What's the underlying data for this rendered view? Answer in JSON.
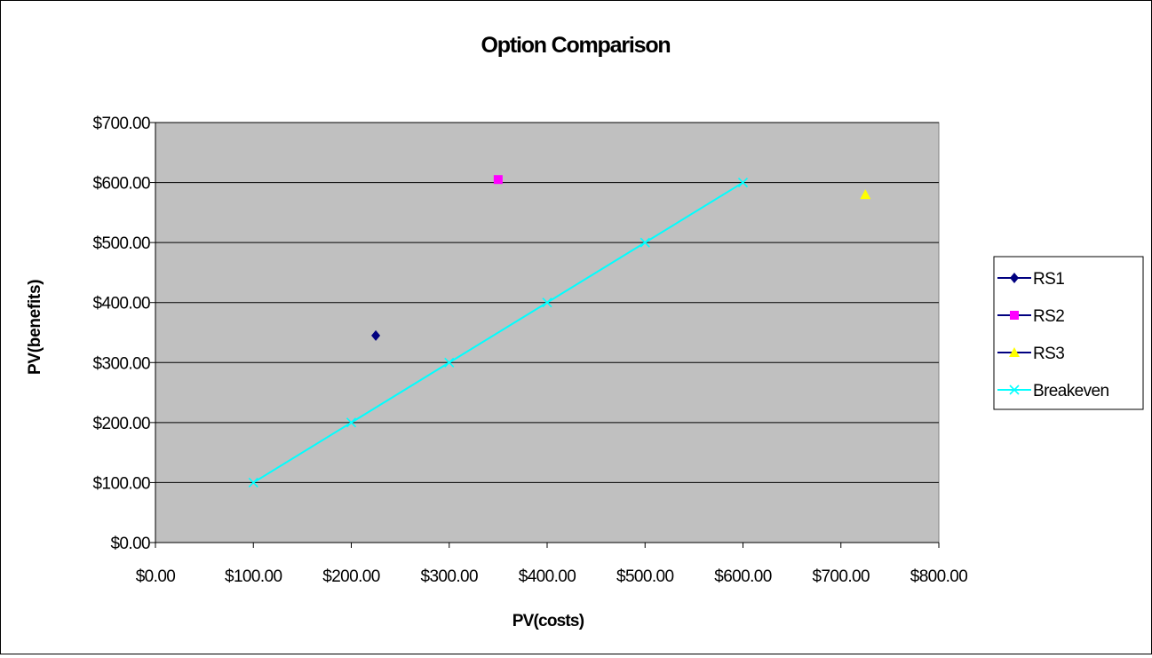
{
  "chart_data": {
    "type": "scatter",
    "title": "Option Comparison",
    "xlabel": "PV(costs)",
    "ylabel": "PV(benefits)",
    "xlim": [
      0,
      800
    ],
    "ylim": [
      0,
      700
    ],
    "x_ticks": [
      0,
      100,
      200,
      300,
      400,
      500,
      600,
      700,
      800
    ],
    "y_ticks": [
      0,
      100,
      200,
      300,
      400,
      500,
      600,
      700
    ],
    "x_tick_labels": [
      "$0.00",
      "$100.00",
      "$200.00",
      "$300.00",
      "$400.00",
      "$500.00",
      "$600.00",
      "$700.00",
      "$800.00"
    ],
    "y_tick_labels": [
      "$0.00",
      "$100.00",
      "$200.00",
      "$300.00",
      "$400.00",
      "$500.00",
      "$600.00",
      "$700.00"
    ],
    "grid": "horizontal",
    "plot_background": "#c0c0c0",
    "legend_position": "right",
    "series": [
      {
        "name": "RS1",
        "marker": "diamond",
        "color": "#000080",
        "line": false,
        "points": [
          [
            225,
            345
          ]
        ]
      },
      {
        "name": "RS2",
        "marker": "square",
        "color": "#ff00ff",
        "line": false,
        "points": [
          [
            350,
            605
          ]
        ]
      },
      {
        "name": "RS3",
        "marker": "triangle",
        "color": "#ffff00",
        "line": false,
        "points": [
          [
            725,
            580
          ]
        ]
      },
      {
        "name": "Breakeven",
        "marker": "x",
        "color": "#00ffff",
        "line": true,
        "points": [
          [
            100,
            100
          ],
          [
            200,
            200
          ],
          [
            300,
            300
          ],
          [
            400,
            400
          ],
          [
            500,
            500
          ],
          [
            600,
            600
          ]
        ]
      }
    ]
  }
}
